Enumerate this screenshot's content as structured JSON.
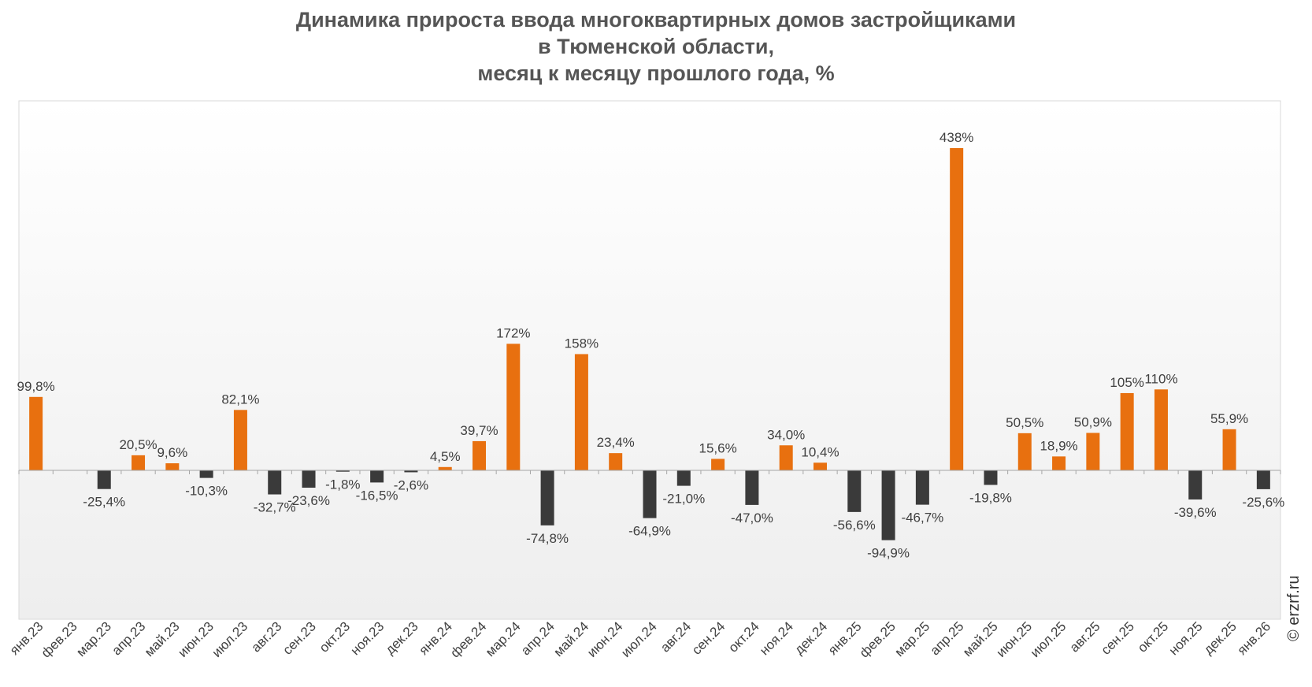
{
  "chart_data": {
    "type": "bar",
    "title_lines": [
      "Динамика прироста ввода многоквартирных домов застройщиками",
      "в Тюменской области,",
      "месяц к месяцу прошлого года, %"
    ],
    "xlabel": "",
    "ylabel": "",
    "grid": false,
    "legend": "none",
    "ylim": [
      -160,
      500
    ],
    "categories": [
      "янв.23",
      "фев.23",
      "мар.23",
      "апр.23",
      "май.23",
      "июн.23",
      "июл.23",
      "авг.23",
      "сен.23",
      "окт.23",
      "ноя.23",
      "дек.23",
      "янв.24",
      "фев.24",
      "мар.24",
      "апр.24",
      "май.24",
      "июн.24",
      "июл.24",
      "авг.24",
      "сен.24",
      "окт.24",
      "ноя.24",
      "дек.24",
      "янв.25",
      "фев.25",
      "мар.25",
      "апр.25",
      "май.25",
      "июн.25",
      "июл.25",
      "авг.25",
      "сен.25",
      "окт.25",
      "ноя.25",
      "дек.25",
      "янв.26"
    ],
    "values": [
      99.8,
      null,
      -25.4,
      20.5,
      9.6,
      -10.3,
      82.1,
      -32.7,
      -23.6,
      -1.8,
      -16.5,
      -2.6,
      4.5,
      39.7,
      172,
      -74.8,
      158,
      23.4,
      -64.9,
      -21.0,
      15.6,
      -47.0,
      34.0,
      10.4,
      -56.6,
      -94.9,
      -46.7,
      438,
      -19.8,
      50.5,
      18.9,
      50.9,
      105,
      110,
      -39.6,
      55.9,
      -25.6
    ],
    "labels": [
      "99,8%",
      "",
      "-25,4%",
      "20,5%",
      "9,6%",
      "-10,3%",
      "82,1%",
      "-32,7%",
      "-23,6%",
      "-1,8%",
      "-16,5%",
      "-2,6%",
      "4,5%",
      "39,7%",
      "172%",
      "-74,8%",
      "158%",
      "23,4%",
      "-64,9%",
      "-21,0%",
      "15,6%",
      "-47,0%",
      "34,0%",
      "10,4%",
      "-56,6%",
      "-94,9%",
      "-46,7%",
      "438%",
      "-19,8%",
      "50,5%",
      "18,9%",
      "50,9%",
      "105%",
      "110%",
      "-39,6%",
      "55,9%",
      "-25,6%"
    ],
    "colors": {
      "positive": "#E8700F",
      "negative": "#3A3A3A",
      "plot_bg_top": "#FFFFFF",
      "plot_bg_bottom": "#EEEEEE",
      "plot_border": "#D9D9D9",
      "zero_line": "#A6A6A6",
      "text": "#404040"
    }
  },
  "watermark": "© erzrf.ru"
}
